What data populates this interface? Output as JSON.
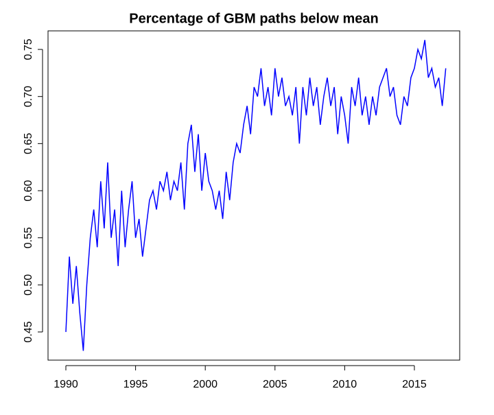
{
  "chart_data": {
    "type": "line",
    "title": "Percentage of GBM paths below mean",
    "x": [
      1990,
      1990.25,
      1990.5,
      1990.75,
      1991,
      1991.25,
      1991.5,
      1991.75,
      1992,
      1992.25,
      1992.5,
      1992.75,
      1993,
      1993.25,
      1993.5,
      1993.75,
      1994,
      1994.25,
      1994.5,
      1994.75,
      1995,
      1995.25,
      1995.5,
      1995.75,
      1996,
      1996.25,
      1996.5,
      1996.75,
      1997,
      1997.25,
      1997.5,
      1997.75,
      1998,
      1998.25,
      1998.5,
      1998.75,
      1999,
      1999.25,
      1999.5,
      1999.75,
      2000,
      2000.25,
      2000.5,
      2000.75,
      2001,
      2001.25,
      2001.5,
      2001.75,
      2002,
      2002.25,
      2002.5,
      2002.75,
      2003,
      2003.25,
      2003.5,
      2003.75,
      2004,
      2004.25,
      2004.5,
      2004.75,
      2005,
      2005.25,
      2005.5,
      2005.75,
      2006,
      2006.25,
      2006.5,
      2006.75,
      2007,
      2007.25,
      2007.5,
      2007.75,
      2008,
      2008.25,
      2008.5,
      2008.75,
      2009,
      2009.25,
      2009.5,
      2009.75,
      2010,
      2010.25,
      2010.5,
      2010.75,
      2011,
      2011.25,
      2011.5,
      2011.75,
      2012,
      2012.25,
      2012.5,
      2012.75,
      2013,
      2013.25,
      2013.5,
      2013.75,
      2014,
      2014.25,
      2014.5,
      2014.75,
      2015,
      2015.25,
      2015.5,
      2015.75,
      2016,
      2016.25,
      2016.5,
      2016.75,
      2017,
      2017.25
    ],
    "series": [
      {
        "color": "#0000ff",
        "values": [
          0.45,
          0.53,
          0.48,
          0.52,
          0.47,
          0.43,
          0.5,
          0.55,
          0.58,
          0.54,
          0.61,
          0.56,
          0.63,
          0.55,
          0.58,
          0.52,
          0.6,
          0.54,
          0.58,
          0.61,
          0.55,
          0.57,
          0.53,
          0.56,
          0.59,
          0.6,
          0.58,
          0.61,
          0.6,
          0.62,
          0.59,
          0.61,
          0.6,
          0.63,
          0.58,
          0.65,
          0.67,
          0.62,
          0.66,
          0.6,
          0.64,
          0.61,
          0.6,
          0.58,
          0.6,
          0.57,
          0.62,
          0.59,
          0.63,
          0.65,
          0.64,
          0.67,
          0.69,
          0.66,
          0.71,
          0.7,
          0.73,
          0.69,
          0.71,
          0.68,
          0.73,
          0.7,
          0.72,
          0.69,
          0.7,
          0.68,
          0.71,
          0.65,
          0.71,
          0.68,
          0.72,
          0.69,
          0.71,
          0.67,
          0.7,
          0.72,
          0.69,
          0.71,
          0.66,
          0.7,
          0.68,
          0.65,
          0.71,
          0.69,
          0.72,
          0.68,
          0.7,
          0.67,
          0.7,
          0.68,
          0.71,
          0.72,
          0.73,
          0.7,
          0.71,
          0.68,
          0.67,
          0.7,
          0.69,
          0.72,
          0.73,
          0.75,
          0.74,
          0.76,
          0.72,
          0.73,
          0.71,
          0.72,
          0.69,
          0.73
        ]
      }
    ],
    "xlim": [
      1988.72,
      2018.25
    ],
    "ylim": [
      0.4201,
      0.7697
    ],
    "xticks": [
      1990,
      1995,
      2000,
      2005,
      2010,
      2015
    ],
    "yticks": [
      0.45,
      {
        "value": 0.5,
        "label": "0.50"
      },
      0.55,
      {
        "value": 0.6,
        "label": "0.60"
      },
      0.65,
      {
        "value": 0.7,
        "label": "0.70"
      },
      0.75
    ]
  }
}
